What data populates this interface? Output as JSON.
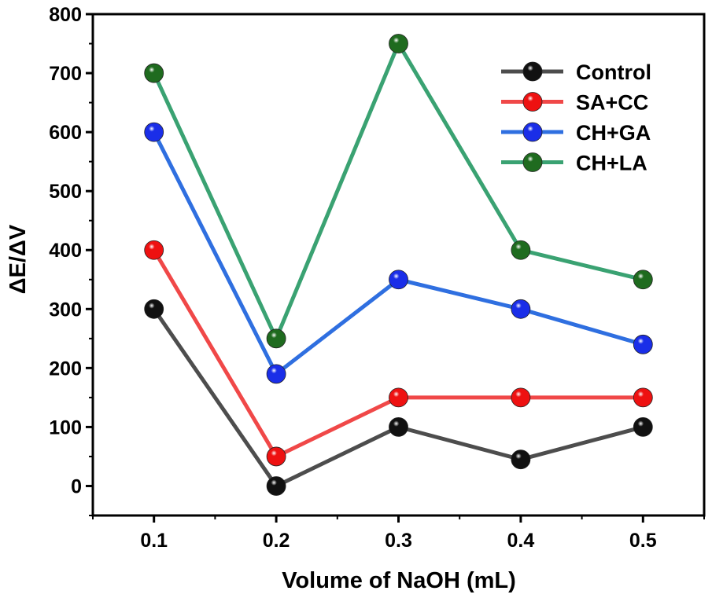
{
  "chart_data": {
    "type": "line",
    "title": "",
    "xlabel": "Volume of NaOH (mL)",
    "ylabel": "ΔE/ΔV",
    "x": [
      0.1,
      0.2,
      0.3,
      0.4,
      0.5
    ],
    "x_tick_labels": [
      "0.1",
      "0.2",
      "0.3",
      "0.4",
      "0.5"
    ],
    "xlim": [
      0.05,
      0.55
    ],
    "ylim": [
      -50,
      800
    ],
    "y_ticks": [
      0,
      100,
      200,
      300,
      400,
      500,
      600,
      700,
      800
    ],
    "y_tick_labels": [
      "0",
      "100",
      "200",
      "300",
      "400",
      "500",
      "600",
      "700",
      "800"
    ],
    "grid": false,
    "legend_position": "top-right",
    "series": [
      {
        "name": "Control",
        "color": "#4d4d4d",
        "marker_color": "#111111",
        "values": [
          300,
          0,
          100,
          45,
          100
        ]
      },
      {
        "name": "SA+CC",
        "color": "#f04848",
        "marker_color": "#ee1111",
        "values": [
          400,
          50,
          150,
          150,
          150
        ]
      },
      {
        "name": "CH+GA",
        "color": "#2f6fe0",
        "marker_color": "#1a2ee8",
        "values": [
          600,
          190,
          350,
          300,
          240
        ]
      },
      {
        "name": "CH+LA",
        "color": "#3aa272",
        "marker_color": "#1f6b1f",
        "values": [
          700,
          250,
          750,
          400,
          350
        ]
      }
    ]
  }
}
